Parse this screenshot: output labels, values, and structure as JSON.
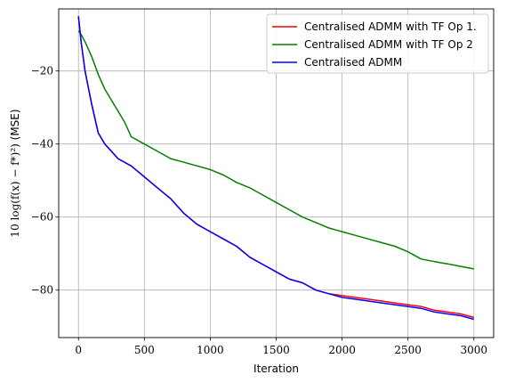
{
  "chart_data": {
    "type": "line",
    "title": "",
    "xlabel": "Iteration",
    "ylabel_math": "10 log(f(x) − f*)²)",
    "ylabel_suffix": " (MSE)",
    "xlim": [
      -150,
      3150
    ],
    "ylim": [
      -93,
      -3
    ],
    "xticks": [
      0,
      500,
      1000,
      1500,
      2000,
      2500,
      3000
    ],
    "yticks": [
      -20,
      -40,
      -60,
      -80
    ],
    "grid": true,
    "legend_position": "top-right",
    "series": [
      {
        "name": "Centralised ADMM with TF Op 1.",
        "color": "#ff0000",
        "x": [
          0,
          20,
          50,
          100,
          150,
          200,
          250,
          300,
          400,
          500,
          600,
          700,
          800,
          900,
          1000,
          1100,
          1200,
          1300,
          1400,
          1500,
          1600,
          1700,
          1800,
          1900,
          2000,
          2100,
          2200,
          2300,
          2400,
          2500,
          2600,
          2700,
          2800,
          2900,
          3000
        ],
        "y": [
          -5,
          -12,
          -20,
          -29,
          -37,
          -40,
          -42,
          -44,
          -46,
          -49,
          -52,
          -55,
          -59,
          -62,
          -64,
          -66,
          -68,
          -71,
          -73,
          -75,
          -77,
          -78,
          -80,
          -81,
          -81.5,
          -82,
          -82.5,
          -83,
          -83.5,
          -84,
          -84.5,
          -85.5,
          -86,
          -86.5,
          -87.5
        ]
      },
      {
        "name": "Centralised ADMM with TF Op 2",
        "color": "#008000",
        "x": [
          0,
          20,
          50,
          100,
          150,
          200,
          250,
          300,
          350,
          400,
          500,
          600,
          700,
          800,
          900,
          1000,
          1100,
          1200,
          1300,
          1400,
          1500,
          1600,
          1700,
          1800,
          1900,
          2000,
          2100,
          2200,
          2300,
          2400,
          2500,
          2600,
          2700,
          2800,
          2900,
          3000
        ],
        "y": [
          -9,
          -10,
          -12,
          -16,
          -21,
          -25,
          -28,
          -31,
          -34,
          -38,
          -40,
          -42,
          -44,
          -45,
          -46,
          -47,
          -48.5,
          -50.5,
          -52,
          -54,
          -56,
          -58,
          -60,
          -61.5,
          -63,
          -64,
          -65,
          -66,
          -67,
          -68,
          -69.5,
          -71.5,
          -72.2,
          -72.8,
          -73.5,
          -74.2
        ]
      },
      {
        "name": "Centralised ADMM",
        "color": "#0000ff",
        "x": [
          0,
          20,
          50,
          100,
          150,
          200,
          250,
          300,
          400,
          500,
          600,
          700,
          800,
          900,
          1000,
          1100,
          1200,
          1300,
          1400,
          1500,
          1600,
          1700,
          1800,
          1900,
          2000,
          2100,
          2200,
          2300,
          2400,
          2500,
          2600,
          2700,
          2800,
          2900,
          3000
        ],
        "y": [
          -5,
          -12,
          -20,
          -29,
          -37,
          -40,
          -42,
          -44,
          -46,
          -49,
          -52,
          -55,
          -59,
          -62,
          -64,
          -66,
          -68,
          -71,
          -73,
          -75,
          -77,
          -78,
          -80,
          -81,
          -82,
          -82.5,
          -83,
          -83.5,
          -84,
          -84.5,
          -85,
          -86,
          -86.5,
          -87,
          -88
        ]
      }
    ]
  }
}
